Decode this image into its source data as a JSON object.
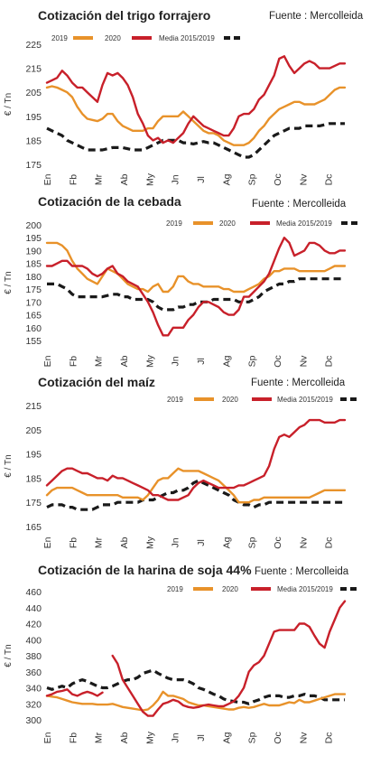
{
  "colors": {
    "s2019": "#E8922A",
    "s2020": "#C8202A",
    "media": "#1a1a1a"
  },
  "chart_data": [
    {
      "type": "line",
      "title": "Cotización del trigo forrajero",
      "source": "Fuente : Mercolleida",
      "ylabel": "€ / Tn",
      "ylim": [
        175,
        225
      ],
      "yticks": [
        225,
        215,
        205,
        195,
        185,
        175
      ],
      "xticks": [
        "En",
        "Fb",
        "Mr",
        "Ab",
        "My",
        "Jn",
        "Jl",
        "Ag",
        "Sp",
        "Oc",
        "Nv",
        "Dc"
      ],
      "series": [
        {
          "name": "2019",
          "values": [
            207,
            207.5,
            207,
            206,
            205,
            203,
            199,
            196,
            194,
            193.5,
            193,
            194,
            196,
            196,
            193,
            191,
            190,
            189,
            189,
            189,
            190,
            190,
            193,
            195,
            195,
            195,
            195,
            197,
            195,
            193,
            191,
            189,
            188,
            188,
            187,
            185,
            184,
            183,
            183,
            183,
            184,
            186,
            189,
            191,
            194,
            196,
            198,
            199,
            200,
            201,
            201,
            200,
            200,
            200,
            201,
            202,
            204,
            206,
            207,
            207
          ]
        },
        {
          "name": "2020",
          "values": [
            209,
            210,
            211,
            214,
            212,
            209,
            207,
            207,
            205,
            203,
            201,
            208,
            213,
            212,
            213,
            211,
            208,
            203,
            196,
            192,
            187,
            185,
            186,
            184,
            185,
            184,
            186,
            188,
            192,
            195,
            193,
            191,
            190,
            189,
            188,
            187,
            187,
            190,
            195,
            196,
            196,
            198,
            202,
            204,
            208,
            212,
            219,
            220,
            216,
            213,
            215,
            217,
            218,
            217,
            215,
            215,
            215,
            216,
            217,
            217
          ]
        },
        {
          "name": "Media 2015/2019",
          "values": [
            190,
            189,
            188,
            187,
            185,
            184,
            183,
            182,
            181,
            181,
            181,
            181,
            181.5,
            182,
            182,
            182,
            181.5,
            181,
            181,
            181,
            182,
            183,
            184,
            185,
            185,
            185,
            185,
            184,
            184,
            183.5,
            184,
            184.5,
            184,
            184,
            183,
            182,
            181,
            180,
            179,
            178,
            178,
            179,
            181,
            183,
            185,
            187,
            188,
            189,
            190,
            190,
            190,
            191,
            191,
            191,
            191,
            191.5,
            192,
            192,
            192,
            192
          ]
        }
      ]
    },
    {
      "type": "line",
      "title": "Cotización de la cebada",
      "source": "Fuente : Mercolleida",
      "ylabel": "€ / Tn",
      "ylim": [
        155,
        200
      ],
      "yticks": [
        200,
        195,
        190,
        185,
        180,
        175,
        170,
        165,
        160,
        155
      ],
      "xticks": [
        "En",
        "Fb",
        "Mr",
        "Ab",
        "My",
        "Jn",
        "Jl",
        "Ag",
        "Sp",
        "Oc",
        "Nv",
        "Dc"
      ],
      "series": [
        {
          "name": "2019",
          "values": [
            193,
            193,
            193,
            192,
            190,
            186,
            183,
            181,
            179,
            178,
            177,
            180,
            183,
            182,
            181,
            179,
            177,
            176,
            175,
            175,
            174,
            176,
            177,
            174,
            174,
            176,
            180,
            180,
            178,
            177,
            177,
            176,
            176,
            176,
            176,
            175,
            175,
            174,
            174,
            174,
            175,
            176,
            177,
            179,
            180,
            182,
            182,
            183,
            183,
            183,
            182,
            182,
            182,
            182,
            182,
            182,
            183,
            184,
            184,
            184
          ]
        },
        {
          "name": "2020",
          "values": [
            184,
            184,
            185,
            186,
            186,
            184,
            184,
            184,
            183,
            181,
            180,
            181,
            183,
            184,
            181,
            180,
            178,
            177,
            176,
            173,
            170,
            166,
            161,
            157,
            157,
            160,
            160,
            160,
            163,
            165,
            168,
            170,
            170,
            169,
            168,
            166,
            165,
            165,
            167,
            172,
            172,
            174,
            176,
            178,
            181,
            186,
            191,
            195,
            193,
            188,
            189,
            190,
            193,
            193,
            192,
            190,
            189,
            189,
            190,
            190
          ]
        },
        {
          "name": "Media 2015/2019",
          "values": [
            177,
            177,
            177,
            176,
            175,
            173,
            172,
            172,
            172,
            172,
            172,
            172,
            172.5,
            173,
            173,
            172,
            172,
            171,
            171,
            171,
            171,
            170,
            168,
            167,
            167,
            167,
            168,
            168,
            169,
            169,
            170,
            170,
            170,
            171,
            171,
            171,
            171,
            171,
            170,
            170,
            170,
            171,
            172,
            174,
            175,
            176,
            177,
            177,
            178,
            178,
            179,
            179,
            179,
            179,
            179,
            179,
            179,
            179,
            179,
            179
          ]
        }
      ]
    },
    {
      "type": "line",
      "title": "Cotización del maíz",
      "source": "Fuente : Mercolleida",
      "ylabel": "€ / Tn",
      "ylim": [
        165,
        215
      ],
      "yticks": [
        215,
        205,
        195,
        185,
        175,
        165
      ],
      "xticks": [
        "En",
        "Fb",
        "Mr",
        "Ab",
        "My",
        "Jn",
        "Jl",
        "Ag",
        "Sp",
        "Oc",
        "Nv",
        "Dc"
      ],
      "series": [
        {
          "name": "2019",
          "values": [
            178,
            180,
            181,
            181,
            181,
            181,
            180,
            179,
            178,
            178,
            178,
            178,
            178,
            178,
            178,
            177,
            177,
            177,
            177,
            176,
            178,
            181,
            184,
            185,
            185,
            187,
            189,
            188,
            188,
            188,
            188,
            187,
            186,
            185,
            184,
            182,
            180,
            178,
            175,
            175,
            175,
            176,
            176,
            177,
            177,
            177,
            177,
            177,
            177,
            177,
            177,
            177,
            177,
            178,
            179,
            180,
            180,
            180,
            180,
            180
          ]
        },
        {
          "name": "2020",
          "values": [
            182,
            184,
            186,
            188,
            189,
            189,
            188,
            187,
            187,
            186,
            185,
            185,
            184,
            186,
            185,
            185,
            184,
            183,
            182,
            181,
            180,
            178,
            178,
            177,
            176,
            176,
            176,
            177,
            178,
            181,
            183,
            184,
            183,
            182,
            181,
            181,
            181,
            181,
            182,
            182,
            183,
            184,
            185,
            186,
            190,
            197,
            202,
            203,
            202,
            204,
            206,
            207,
            209,
            209,
            209,
            208,
            208,
            208,
            209,
            209
          ]
        },
        {
          "name": "Media 2015/2019",
          "values": [
            173,
            174,
            174,
            174,
            173,
            173,
            172,
            172,
            172,
            172,
            173,
            174,
            174,
            174,
            175,
            175,
            175,
            175,
            175,
            176,
            176,
            176,
            177,
            178,
            179,
            179,
            180,
            180,
            181,
            183,
            184,
            183,
            182,
            181,
            180,
            179,
            178,
            176,
            175,
            174,
            174,
            173,
            174,
            174,
            175,
            175,
            175,
            175,
            175,
            175,
            175,
            175,
            175,
            175,
            175,
            175,
            175,
            175,
            175,
            175
          ]
        }
      ]
    },
    {
      "type": "line",
      "title": "Cotización de la harina de soja 44%",
      "source": "Fuente : Mercolleida",
      "ylabel": "€ / Tn",
      "ylim": [
        300,
        460
      ],
      "yticks": [
        460,
        440,
        420,
        400,
        380,
        360,
        340,
        320,
        300
      ],
      "xticks": [
        "En",
        "Fb",
        "Mr",
        "Ab",
        "My",
        "Jn",
        "Jl",
        "Ag",
        "Sp",
        "Oc",
        "Nv",
        "Dc"
      ],
      "series": [
        {
          "name": "2019",
          "values": [
            330,
            329,
            328,
            326,
            324,
            322,
            321,
            320,
            320,
            320,
            319,
            319,
            319,
            320,
            318,
            316,
            315,
            314,
            313,
            312,
            313,
            318,
            325,
            335,
            330,
            330,
            328,
            326,
            322,
            320,
            318,
            318,
            317,
            316,
            315,
            314,
            313,
            313,
            315,
            316,
            315,
            316,
            318,
            320,
            318,
            318,
            318,
            320,
            322,
            321,
            325,
            322,
            322,
            324,
            326,
            328,
            330,
            332,
            332,
            332
          ]
        },
        {
          "name": "2020",
          "values": [
            330,
            332,
            335,
            336,
            338,
            332,
            330,
            333,
            335,
            333,
            330,
            334,
            null,
            380,
            370,
            350,
            340,
            330,
            320,
            310,
            305,
            305,
            313,
            320,
            322,
            325,
            323,
            318,
            316,
            315,
            316,
            318,
            319,
            318,
            317,
            317,
            320,
            323,
            330,
            340,
            360,
            368,
            372,
            380,
            395,
            410,
            412,
            412,
            412,
            412,
            420,
            420,
            416,
            405,
            395,
            390,
            410,
            425,
            440,
            448
          ]
        },
        {
          "name": "Media 2015/2019",
          "values": [
            340,
            338,
            340,
            342,
            340,
            345,
            348,
            350,
            348,
            345,
            342,
            340,
            340,
            342,
            345,
            348,
            350,
            350,
            353,
            358,
            360,
            362,
            358,
            355,
            352,
            350,
            350,
            350,
            348,
            345,
            340,
            338,
            335,
            332,
            330,
            326,
            324,
            323,
            322,
            322,
            320,
            323,
            325,
            328,
            330,
            330,
            330,
            328,
            328,
            330,
            330,
            332,
            330,
            330,
            328,
            325,
            325,
            325,
            325,
            325
          ]
        }
      ]
    }
  ]
}
